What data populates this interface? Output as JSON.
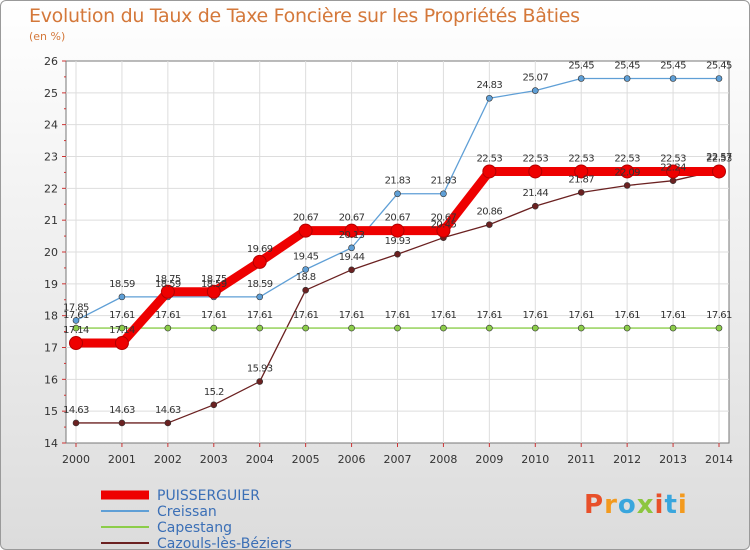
{
  "chart_data": {
    "type": "line",
    "title": "Evolution du Taux de Taxe Foncière sur les Propriétés Bâties",
    "subtitle": "(en %)",
    "x": [
      "2000",
      "2001",
      "2002",
      "2003",
      "2004",
      "2005",
      "2006",
      "2007",
      "2008",
      "2009",
      "2010",
      "2011",
      "2012",
      "2013",
      "2014"
    ],
    "ylim": [
      14,
      26
    ],
    "yticks": [
      "14",
      "15",
      "16",
      "17",
      "18",
      "19",
      "20",
      "21",
      "22",
      "23",
      "24",
      "25",
      "26"
    ],
    "grid": true,
    "legend_position": "bottom-left",
    "series": [
      {
        "name": "PUISSERGUIER",
        "color": "#ee0000",
        "values": [
          17.14,
          17.14,
          18.75,
          18.75,
          19.69,
          20.67,
          20.67,
          20.67,
          20.67,
          22.53,
          22.53,
          22.53,
          22.53,
          22.53,
          22.53
        ],
        "labels": [
          "17.14",
          "17.14",
          "18.75",
          "18.75",
          "19.69",
          "20.67",
          "20.67",
          "20.67",
          "20.67",
          "22.53",
          "22.53",
          "22.53",
          "22.53",
          "22.53",
          "22.53"
        ]
      },
      {
        "name": "Creissan",
        "color": "#5f9fd6",
        "values": [
          17.85,
          18.59,
          18.59,
          18.59,
          18.59,
          19.45,
          20.13,
          21.83,
          21.83,
          24.83,
          25.07,
          25.45,
          25.45,
          25.45,
          25.45
        ],
        "labels": [
          "17.85",
          "18.59",
          "18.59",
          "18.59",
          "18.59",
          "19.45",
          "20.13",
          "21.83",
          "21.83",
          "24.83",
          "25.07",
          "25.45",
          "25.45",
          "25.45",
          "25.45"
        ]
      },
      {
        "name": "Capestang",
        "color": "#8ccd4a",
        "values": [
          17.61,
          17.61,
          17.61,
          17.61,
          17.61,
          17.61,
          17.61,
          17.61,
          17.61,
          17.61,
          17.61,
          17.61,
          17.61,
          17.61,
          17.61
        ],
        "labels": [
          "17.61",
          "17.61",
          "17.61",
          "17.61",
          "17.61",
          "17.61",
          "17.61",
          "17.61",
          "17.61",
          "17.61",
          "17.61",
          "17.61",
          "17.61",
          "17.61",
          "17.61"
        ]
      },
      {
        "name": "Cazouls-lès-Béziers",
        "color": "#6b2121",
        "values": [
          14.63,
          14.63,
          14.63,
          15.2,
          15.93,
          18.8,
          19.44,
          19.93,
          20.45,
          20.86,
          21.44,
          21.87,
          22.09,
          22.24,
          22.57
        ],
        "labels": [
          "14.63",
          "14.63",
          "14.63",
          "15.2",
          "15.93",
          "18.8",
          "19.44",
          "19.93",
          "20.45",
          "20.86",
          "21.44",
          "21.87",
          "22.09",
          "22.24",
          "22.57"
        ]
      }
    ]
  },
  "logo": {
    "letters": [
      "P",
      "r",
      "o",
      "x",
      "i",
      "t",
      "i"
    ],
    "colors": [
      "#e8502a",
      "#f39a1e",
      "#3aa6dd",
      "#8cc63f",
      "#e8502a",
      "#3aa6dd",
      "#f39a1e"
    ]
  }
}
